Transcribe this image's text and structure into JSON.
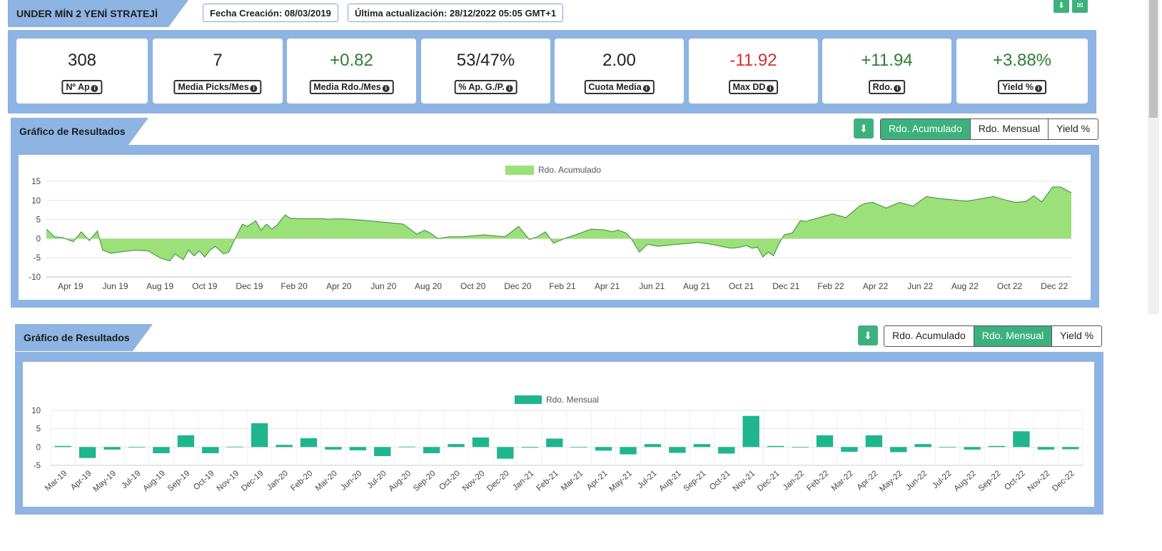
{
  "header": {
    "strategy_title": "UNDER MİN 2 YENİ STRATEJİ",
    "created": "Fecha Creación: 08/03/2019",
    "updated": "Última actualización: 28/12/2022 05:05 GMT+1"
  },
  "stats": [
    {
      "value": "308",
      "label": "Nº Ap",
      "tone": "neutral"
    },
    {
      "value": "7",
      "label": "Media Picks/Mes",
      "tone": "neutral"
    },
    {
      "value": "+0.82",
      "label": "Media Rdo./Mes",
      "tone": "pos"
    },
    {
      "value": "53/47%",
      "label": "% Ap. G./P.",
      "tone": "neutral"
    },
    {
      "value": "2.00",
      "label": "Cuota Media",
      "tone": "neutral"
    },
    {
      "value": "-11.92",
      "label": "Max DD",
      "tone": "neg"
    },
    {
      "value": "+11.94",
      "label": "Rdo.",
      "tone": "pos"
    },
    {
      "value": "+3.88%",
      "label": "Yield %",
      "tone": "pos"
    }
  ],
  "panels": {
    "top_title": "Gráfico de Resultados",
    "bottom_title": "Gráfico de Resultados",
    "buttons": [
      "Rdo. Acumulado",
      "Rdo. Mensual",
      "Yield %"
    ]
  },
  "colors": {
    "area_fill": "#9be079",
    "area_line": "#3a8a3a",
    "bar_fill": "#1fb58f",
    "panel_bg": "#8db4e2",
    "accent": "#3db17d"
  },
  "chart_data": [
    {
      "type": "area",
      "legend": "Rdo. Acumulado",
      "x_tick_labels": [
        "Apr 19",
        "Jun 19",
        "Aug 19",
        "Oct 19",
        "Dec 19",
        "Feb 20",
        "Apr 20",
        "Jun 20",
        "Aug 20",
        "Oct 20",
        "Dec 20",
        "Feb 21",
        "Apr 21",
        "Jun 21",
        "Aug 21",
        "Oct 21",
        "Dec 21",
        "Feb 22",
        "Apr 22",
        "Jun 22",
        "Aug 22",
        "Oct 22",
        "Dec 22"
      ],
      "y_ticks": [
        -10,
        -5,
        0,
        5,
        10,
        15
      ],
      "ylim": [
        -10,
        15
      ],
      "x_range_months": [
        2019.17,
        2022.99
      ],
      "x": [
        2019.17,
        2019.2,
        2019.23,
        2019.27,
        2019.3,
        2019.33,
        2019.36,
        2019.38,
        2019.41,
        2019.44,
        2019.5,
        2019.55,
        2019.58,
        2019.6,
        2019.63,
        2019.65,
        2019.68,
        2019.7,
        2019.72,
        2019.74,
        2019.76,
        2019.78,
        2019.8,
        2019.83,
        2019.85,
        2019.87,
        2019.9,
        2019.92,
        2019.95,
        2019.97,
        2019.99,
        2020.01,
        2020.03,
        2020.06,
        2020.08,
        2020.1,
        2020.12,
        2020.14,
        2020.16,
        2020.18,
        2020.2,
        2020.22,
        2020.25,
        2020.3,
        2020.4,
        2020.5,
        2020.55,
        2020.58,
        2020.6,
        2020.63,
        2020.67,
        2020.72,
        2020.8,
        2020.88,
        2020.93,
        2020.95,
        2020.97,
        2021.0,
        2021.03,
        2021.06,
        2021.1,
        2021.15,
        2021.2,
        2021.25,
        2021.28,
        2021.3,
        2021.33,
        2021.35,
        2021.38,
        2021.41,
        2021.45,
        2021.5,
        2021.6,
        2021.65,
        2021.72,
        2021.75,
        2021.78,
        2021.8,
        2021.82,
        2021.84,
        2021.86,
        2021.88,
        2021.9,
        2021.92,
        2021.95,
        2021.98,
        2022.0,
        2022.05,
        2022.1,
        2022.15,
        2022.2,
        2022.22,
        2022.25,
        2022.3,
        2022.35,
        2022.4,
        2022.45,
        2022.5,
        2022.6,
        2022.7,
        2022.75,
        2022.78,
        2022.82,
        2022.85,
        2022.88,
        2022.92,
        2022.95,
        2022.99
      ],
      "values": [
        2.5,
        0.5,
        0.3,
        -0.8,
        1.8,
        -0.5,
        2,
        -3,
        -3.8,
        -3.5,
        -3,
        -3.2,
        -4.5,
        -5.2,
        -5.8,
        -4,
        -5.5,
        -3,
        -4.5,
        -3.2,
        -4.8,
        -3,
        -2,
        -4,
        -3.5,
        -0.5,
        3.8,
        3.2,
        4.7,
        2.2,
        3.8,
        2.5,
        3.6,
        6.2,
        5.3,
        5.3,
        5.2,
        5.2,
        5.2,
        5.2,
        5.2,
        5.1,
        5.2,
        5.1,
        4.5,
        3.8,
        1.2,
        2.2,
        1.5,
        0,
        0.5,
        0.5,
        1,
        0.5,
        3.2,
        1.5,
        -0.2,
        0.5,
        1.8,
        -1.2,
        0,
        1.2,
        2.5,
        2.3,
        1.8,
        2.3,
        1.5,
        0,
        -3.5,
        -1.5,
        -2,
        -1.6,
        -1,
        -1.5,
        -2.5,
        -2.3,
        -1.8,
        -2.5,
        -2.2,
        -4.8,
        -3.5,
        -4.5,
        -1.3,
        1,
        1.5,
        4.7,
        4.5,
        5.5,
        6.5,
        5.5,
        8.5,
        9.2,
        9.5,
        8,
        9.5,
        8.5,
        11,
        10.5,
        9.8,
        11,
        10,
        9.5,
        9.7,
        11.2,
        9.6,
        13.5,
        13.5,
        12
      ]
    },
    {
      "type": "bar",
      "legend": "Rdo. Mensual",
      "y_ticks": [
        -5,
        0,
        5,
        10
      ],
      "ylim": [
        -5,
        10
      ],
      "categories": [
        "Mar-19",
        "Apr-19",
        "May-19",
        "Jul-19",
        "Aug-19",
        "Sep-19",
        "Oct-19",
        "Nov-19",
        "Dec-19",
        "Jan-20",
        "Feb-20",
        "Mar-20",
        "Jun-20",
        "Jul-20",
        "Aug-20",
        "Sep-20",
        "Oct-20",
        "Nov-20",
        "Dec-20",
        "Jan-21",
        "Feb-21",
        "Mar-21",
        "Apr-21",
        "May-21",
        "Jul-21",
        "Aug-21",
        "Sep-21",
        "Oct-21",
        "Nov-21",
        "Dec-21",
        "Jan-22",
        "Feb-22",
        "Mar-22",
        "Apr-22",
        "May-22",
        "Jun-22",
        "Jul-22",
        "Aug-22",
        "Sep-22",
        "Oct-22",
        "Nov-22",
        "Dec-22"
      ],
      "values": [
        0.3,
        -3,
        -0.7,
        0,
        -1.7,
        3.2,
        -1.7,
        0.1,
        6.5,
        0.6,
        2.4,
        -0.7,
        -0.9,
        -2.5,
        0.1,
        -1.7,
        0.8,
        2.6,
        -3.2,
        -0.2,
        2.3,
        0,
        -1,
        -2,
        0.8,
        -1.6,
        0.8,
        -1.8,
        8.5,
        0.3,
        0,
        3.2,
        -1.3,
        3.2,
        -1.4,
        0.8,
        0,
        -0.7,
        0.3,
        4.3,
        -0.7,
        -0.6
      ]
    }
  ]
}
